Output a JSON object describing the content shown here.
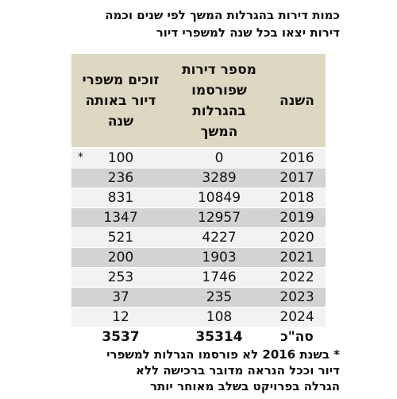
{
  "title": {
    "lines": [
      "כמות דירות בהגרלות המשך לפי שנים וכמה",
      "דירות יצאו בכל שנה למשפרי דיור"
    ]
  },
  "table": {
    "headers": [
      "השנה",
      "מספר דירות שפורסמו בהגרלות המשך",
      "זוכים משפרי דיור באותה שנה"
    ],
    "rows": [
      [
        2016,
        0,
        100
      ],
      [
        2017,
        3289,
        236
      ],
      [
        2018,
        10849,
        831
      ],
      [
        2019,
        12957,
        1347
      ],
      [
        2020,
        4227,
        521
      ],
      [
        2021,
        1903,
        200
      ],
      [
        2022,
        1746,
        253
      ],
      [
        2023,
        235,
        37
      ],
      [
        2024,
        108,
        12
      ]
    ],
    "note_mark": "*",
    "total": [
      "סה\"כ",
      35314,
      3537
    ]
  },
  "footnote": {
    "lines": [
      "* בשנת 2016 לא פורסמו הגרלות למשפרי",
      "דיור וככל הנראה מדובר ברכישה ללא",
      "הגרלה בפרויקט בשלב מאוחר יותר"
    ]
  }
}
